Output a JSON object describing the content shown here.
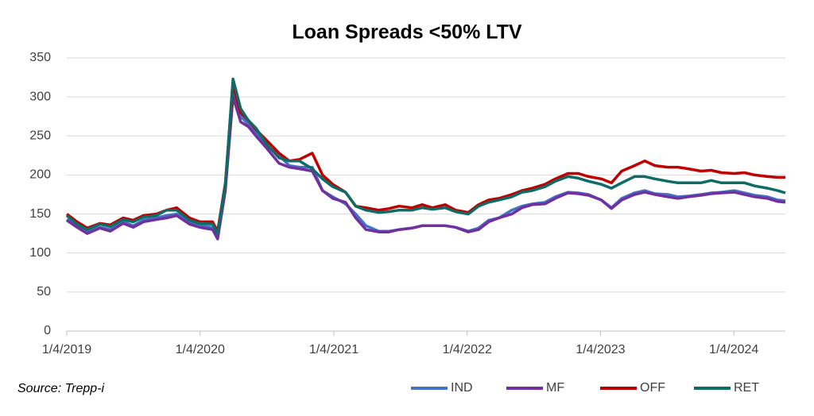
{
  "chart_data": {
    "type": "line",
    "title": "Loan Spreads <50% LTV",
    "source": "Source: Trepp-i",
    "x": [
      "2019-01-04",
      "2019-02-01",
      "2019-03-01",
      "2019-04-05",
      "2019-05-03",
      "2019-06-07",
      "2019-07-05",
      "2019-08-02",
      "2019-09-06",
      "2019-10-04",
      "2019-11-01",
      "2019-12-06",
      "2020-01-03",
      "2020-02-07",
      "2020-02-21",
      "2020-03-13",
      "2020-04-03",
      "2020-04-24",
      "2020-05-15",
      "2020-06-05",
      "2020-07-03",
      "2020-08-07",
      "2020-09-04",
      "2020-10-02",
      "2020-11-06",
      "2020-12-04",
      "2021-01-01",
      "2021-02-05",
      "2021-03-05",
      "2021-04-02",
      "2021-05-07",
      "2021-06-04",
      "2021-07-02",
      "2021-08-06",
      "2021-09-03",
      "2021-10-01",
      "2021-11-05",
      "2021-12-03",
      "2022-01-07",
      "2022-02-04",
      "2022-03-04",
      "2022-04-01",
      "2022-05-06",
      "2022-06-03",
      "2022-07-01",
      "2022-08-05",
      "2022-09-02",
      "2022-10-07",
      "2022-11-04",
      "2022-12-02",
      "2023-01-06",
      "2023-02-03",
      "2023-03-03",
      "2023-04-07",
      "2023-05-05",
      "2023-06-02",
      "2023-07-07",
      "2023-08-04",
      "2023-09-01",
      "2023-10-06",
      "2023-11-03",
      "2023-12-01",
      "2024-01-05",
      "2024-02-02",
      "2024-03-01",
      "2024-04-05",
      "2024-05-03",
      "2024-05-24"
    ],
    "series": [
      {
        "name": "IND",
        "color": "#4472c4",
        "values": [
          143,
          135,
          127,
          133,
          130,
          140,
          135,
          142,
          145,
          148,
          150,
          140,
          135,
          133,
          120,
          185,
          310,
          275,
          265,
          255,
          238,
          225,
          212,
          210,
          210,
          180,
          172,
          163,
          150,
          135,
          128,
          128,
          130,
          132,
          135,
          135,
          135,
          133,
          128,
          132,
          142,
          145,
          155,
          160,
          163,
          165,
          172,
          178,
          177,
          175,
          168,
          158,
          170,
          177,
          180,
          176,
          175,
          172,
          173,
          175,
          177,
          178,
          180,
          177,
          174,
          172,
          168,
          167
        ]
      },
      {
        "name": "MF",
        "color": "#7030a0",
        "values": [
          142,
          133,
          125,
          132,
          128,
          138,
          133,
          140,
          143,
          145,
          148,
          137,
          133,
          130,
          118,
          180,
          300,
          268,
          262,
          250,
          235,
          215,
          210,
          208,
          205,
          180,
          170,
          165,
          145,
          130,
          127,
          127,
          130,
          132,
          135,
          135,
          135,
          133,
          127,
          130,
          140,
          145,
          150,
          158,
          162,
          163,
          170,
          177,
          176,
          174,
          168,
          157,
          168,
          175,
          178,
          175,
          172,
          170,
          172,
          174,
          176,
          177,
          178,
          175,
          172,
          170,
          166,
          165
        ]
      },
      {
        "name": "OFF",
        "color": "#c00000",
        "values": [
          150,
          140,
          132,
          138,
          136,
          145,
          142,
          148,
          150,
          155,
          158,
          145,
          140,
          140,
          128,
          190,
          315,
          280,
          270,
          258,
          245,
          228,
          218,
          220,
          228,
          200,
          188,
          178,
          160,
          158,
          155,
          157,
          160,
          158,
          162,
          158,
          162,
          155,
          152,
          162,
          168,
          170,
          175,
          180,
          183,
          188,
          195,
          202,
          202,
          198,
          195,
          190,
          205,
          212,
          218,
          212,
          210,
          210,
          208,
          205,
          206,
          203,
          202,
          203,
          200,
          198,
          197,
          197
        ]
      },
      {
        "name": "RET",
        "color": "#0e6b66",
        "values": [
          148,
          137,
          130,
          137,
          134,
          143,
          140,
          146,
          148,
          155,
          155,
          142,
          138,
          137,
          125,
          188,
          323,
          285,
          270,
          260,
          240,
          222,
          218,
          218,
          208,
          195,
          185,
          178,
          160,
          155,
          152,
          153,
          155,
          155,
          158,
          156,
          158,
          153,
          150,
          160,
          165,
          168,
          172,
          178,
          180,
          185,
          192,
          198,
          196,
          192,
          188,
          183,
          190,
          198,
          198,
          195,
          192,
          190,
          190,
          190,
          193,
          190,
          190,
          190,
          186,
          183,
          180,
          177
        ]
      }
    ],
    "xlim": [
      "2019-01-04",
      "2024-05-24"
    ],
    "xticks": [
      {
        "value": "2019-01-04",
        "label": "1/4/2019"
      },
      {
        "value": "2020-01-04",
        "label": "1/4/2020"
      },
      {
        "value": "2021-01-04",
        "label": "1/4/2021"
      },
      {
        "value": "2022-01-04",
        "label": "1/4/2022"
      },
      {
        "value": "2023-01-04",
        "label": "1/4/2023"
      },
      {
        "value": "2024-01-04",
        "label": "1/4/2024"
      }
    ],
    "ylim": [
      0,
      350
    ],
    "yticks": [
      0,
      50,
      100,
      150,
      200,
      250,
      300,
      350
    ],
    "grid": true,
    "legend": "bottom-right"
  }
}
